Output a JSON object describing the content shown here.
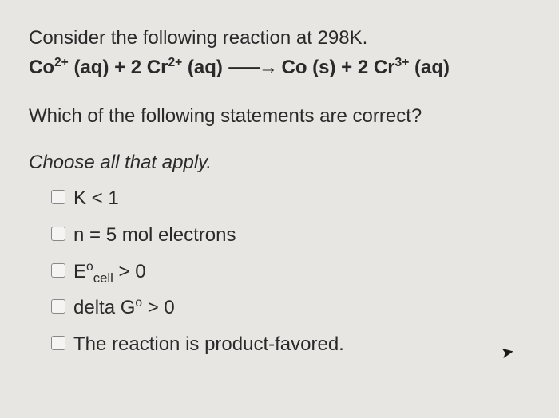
{
  "question": {
    "intro": "Consider the following reaction at 298K.",
    "equation_parts": {
      "co2": "Co",
      "co2_charge": "2+",
      "aq1": " (aq) + 2 Cr",
      "cr2_charge": "2+",
      "aq2": " (aq) ",
      "arrow": "⸺→",
      "co_s": " Co (s) + 2 Cr",
      "cr3_charge": "3+",
      "aq3": " (aq)"
    },
    "subquestion": "Which of the following statements are correct?",
    "instructions": "Choose all that apply."
  },
  "options": [
    {
      "pre": "K < 1",
      "sup": "",
      "sub": "",
      "post": ""
    },
    {
      "pre": "n = 5 mol electrons",
      "sup": "",
      "sub": "",
      "post": ""
    },
    {
      "pre": "E",
      "sup": "o",
      "sub": "cell",
      "post": " > 0"
    },
    {
      "pre": "delta G",
      "sup": "o",
      "sub": "",
      "post": " > 0"
    },
    {
      "pre": "The reaction is product-favored.",
      "sup": "",
      "sub": "",
      "post": ""
    }
  ],
  "styling": {
    "background_color": "#e8e6e3",
    "text_color": "#2a2a2a",
    "font_size_pt": 24,
    "checkbox_border": "#888",
    "checkbox_bg": "#f5f4f2"
  }
}
